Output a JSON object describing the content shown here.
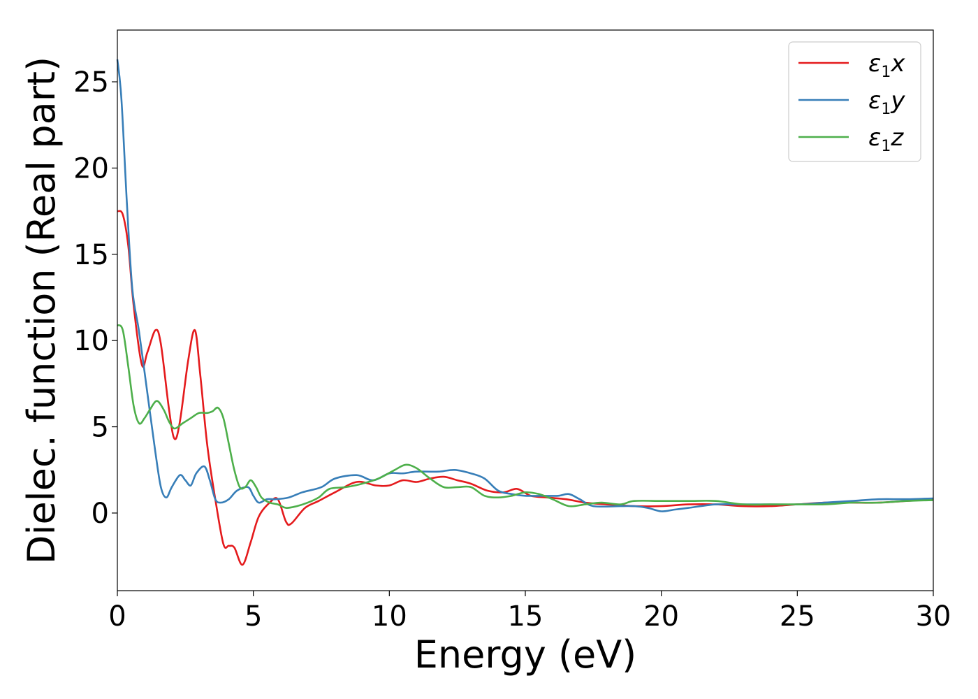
{
  "chart_data": {
    "type": "line",
    "title": "",
    "xlabel": "Energy (eV)",
    "ylabel": "Dielec. function (Real part)",
    "xlim": [
      0,
      30
    ],
    "ylim": [
      -4.5,
      28
    ],
    "xticks": [
      0,
      5,
      10,
      15,
      20,
      25,
      30
    ],
    "yticks": [
      0,
      5,
      10,
      15,
      20,
      25
    ],
    "grid": false,
    "legend_position": "top-right",
    "series": [
      {
        "name": "ε1x",
        "legend_parts": {
          "symbol": "ε",
          "sub": "1",
          "axis": "x"
        },
        "color": "#e41a1c",
        "points": [
          [
            0,
            17.5
          ],
          [
            0.2,
            17.3
          ],
          [
            0.4,
            15.5
          ],
          [
            0.6,
            12.0
          ],
          [
            0.9,
            8.6
          ],
          [
            1.1,
            9.3
          ],
          [
            1.4,
            10.6
          ],
          [
            1.6,
            9.8
          ],
          [
            1.9,
            6.0
          ],
          [
            2.1,
            4.3
          ],
          [
            2.3,
            5.3
          ],
          [
            2.6,
            8.8
          ],
          [
            2.85,
            10.6
          ],
          [
            3.05,
            8.0
          ],
          [
            3.3,
            4.0
          ],
          [
            3.6,
            0.8
          ],
          [
            3.9,
            -1.8
          ],
          [
            4.1,
            -1.9
          ],
          [
            4.3,
            -2.0
          ],
          [
            4.6,
            -3.0
          ],
          [
            4.9,
            -1.7
          ],
          [
            5.2,
            -0.2
          ],
          [
            5.6,
            0.6
          ],
          [
            5.9,
            0.8
          ],
          [
            6.2,
            -0.5
          ],
          [
            6.4,
            -0.6
          ],
          [
            6.9,
            0.3
          ],
          [
            7.4,
            0.7
          ],
          [
            8.0,
            1.2
          ],
          [
            8.8,
            1.8
          ],
          [
            9.5,
            1.6
          ],
          [
            10.0,
            1.6
          ],
          [
            10.5,
            1.9
          ],
          [
            11.0,
            1.8
          ],
          [
            11.5,
            2.0
          ],
          [
            12.0,
            2.1
          ],
          [
            12.5,
            1.9
          ],
          [
            13.0,
            1.7
          ],
          [
            13.6,
            1.3
          ],
          [
            14.2,
            1.2
          ],
          [
            14.7,
            1.4
          ],
          [
            15.2,
            1.0
          ],
          [
            15.8,
            0.9
          ],
          [
            16.5,
            0.8
          ],
          [
            17.2,
            0.6
          ],
          [
            18.0,
            0.5
          ],
          [
            19.0,
            0.4
          ],
          [
            20.0,
            0.4
          ],
          [
            21.0,
            0.5
          ],
          [
            22.0,
            0.5
          ],
          [
            23.0,
            0.4
          ],
          [
            24.0,
            0.4
          ],
          [
            25.0,
            0.5
          ],
          [
            26.0,
            0.6
          ],
          [
            27.0,
            0.6
          ],
          [
            28.0,
            0.6
          ],
          [
            29.0,
            0.7
          ],
          [
            30.0,
            0.8
          ]
        ]
      },
      {
        "name": "ε1y",
        "legend_parts": {
          "symbol": "ε",
          "sub": "1",
          "axis": "y"
        },
        "color": "#377eb8",
        "points": [
          [
            0,
            26.3
          ],
          [
            0.15,
            24.0
          ],
          [
            0.35,
            18.0
          ],
          [
            0.55,
            13.0
          ],
          [
            0.8,
            10.5
          ],
          [
            1.1,
            7.0
          ],
          [
            1.4,
            3.5
          ],
          [
            1.6,
            1.5
          ],
          [
            1.8,
            0.9
          ],
          [
            2.0,
            1.5
          ],
          [
            2.3,
            2.2
          ],
          [
            2.5,
            1.9
          ],
          [
            2.7,
            1.6
          ],
          [
            2.9,
            2.3
          ],
          [
            3.2,
            2.7
          ],
          [
            3.4,
            1.9
          ],
          [
            3.6,
            0.8
          ],
          [
            3.8,
            0.6
          ],
          [
            4.1,
            0.8
          ],
          [
            4.4,
            1.3
          ],
          [
            4.8,
            1.5
          ],
          [
            5.0,
            1.0
          ],
          [
            5.2,
            0.6
          ],
          [
            5.5,
            0.8
          ],
          [
            5.8,
            0.8
          ],
          [
            6.3,
            0.9
          ],
          [
            6.8,
            1.2
          ],
          [
            7.5,
            1.5
          ],
          [
            8.0,
            2.0
          ],
          [
            8.8,
            2.2
          ],
          [
            9.4,
            1.9
          ],
          [
            10.0,
            2.3
          ],
          [
            10.5,
            2.3
          ],
          [
            11.0,
            2.4
          ],
          [
            11.8,
            2.4
          ],
          [
            12.4,
            2.5
          ],
          [
            13.0,
            2.3
          ],
          [
            13.5,
            2.0
          ],
          [
            14.0,
            1.3
          ],
          [
            14.5,
            1.1
          ],
          [
            15.0,
            1.0
          ],
          [
            15.6,
            1.0
          ],
          [
            16.2,
            1.0
          ],
          [
            16.6,
            1.1
          ],
          [
            17.0,
            0.8
          ],
          [
            17.5,
            0.4
          ],
          [
            18.5,
            0.4
          ],
          [
            19.0,
            0.4
          ],
          [
            19.5,
            0.3
          ],
          [
            20.0,
            0.1
          ],
          [
            20.5,
            0.2
          ],
          [
            21.0,
            0.3
          ],
          [
            22.0,
            0.5
          ],
          [
            23.0,
            0.5
          ],
          [
            24.0,
            0.5
          ],
          [
            25.0,
            0.5
          ],
          [
            26.0,
            0.6
          ],
          [
            27.0,
            0.7
          ],
          [
            28.0,
            0.8
          ],
          [
            29.0,
            0.8
          ],
          [
            30.0,
            0.85
          ]
        ]
      },
      {
        "name": "ε1z",
        "legend_parts": {
          "symbol": "ε",
          "sub": "1",
          "axis": "z"
        },
        "color": "#4daf4a",
        "points": [
          [
            0,
            10.9
          ],
          [
            0.2,
            10.6
          ],
          [
            0.4,
            8.5
          ],
          [
            0.6,
            6.2
          ],
          [
            0.8,
            5.2
          ],
          [
            1.0,
            5.5
          ],
          [
            1.2,
            6.0
          ],
          [
            1.45,
            6.5
          ],
          [
            1.7,
            6.0
          ],
          [
            1.9,
            5.3
          ],
          [
            2.1,
            4.9
          ],
          [
            2.4,
            5.2
          ],
          [
            2.7,
            5.5
          ],
          [
            3.0,
            5.8
          ],
          [
            3.3,
            5.8
          ],
          [
            3.5,
            5.9
          ],
          [
            3.7,
            6.1
          ],
          [
            3.9,
            5.5
          ],
          [
            4.1,
            4.0
          ],
          [
            4.3,
            2.5
          ],
          [
            4.5,
            1.5
          ],
          [
            4.7,
            1.5
          ],
          [
            4.9,
            1.9
          ],
          [
            5.1,
            1.5
          ],
          [
            5.3,
            0.9
          ],
          [
            5.6,
            0.6
          ],
          [
            5.9,
            0.5
          ],
          [
            6.2,
            0.3
          ],
          [
            6.6,
            0.4
          ],
          [
            7.0,
            0.6
          ],
          [
            7.4,
            0.9
          ],
          [
            7.8,
            1.4
          ],
          [
            8.4,
            1.5
          ],
          [
            9.0,
            1.7
          ],
          [
            9.6,
            2.0
          ],
          [
            10.2,
            2.5
          ],
          [
            10.6,
            2.8
          ],
          [
            11.0,
            2.6
          ],
          [
            11.5,
            2.0
          ],
          [
            12.0,
            1.5
          ],
          [
            12.5,
            1.5
          ],
          [
            13.0,
            1.5
          ],
          [
            13.5,
            1.0
          ],
          [
            14.0,
            0.9
          ],
          [
            14.5,
            1.0
          ],
          [
            15.0,
            1.2
          ],
          [
            15.5,
            1.1
          ],
          [
            16.0,
            0.8
          ],
          [
            16.6,
            0.4
          ],
          [
            17.2,
            0.5
          ],
          [
            17.8,
            0.6
          ],
          [
            18.5,
            0.5
          ],
          [
            19.0,
            0.7
          ],
          [
            20.0,
            0.7
          ],
          [
            21.0,
            0.7
          ],
          [
            22.0,
            0.7
          ],
          [
            23.0,
            0.5
          ],
          [
            24.0,
            0.5
          ],
          [
            25.0,
            0.5
          ],
          [
            26.0,
            0.5
          ],
          [
            27.0,
            0.6
          ],
          [
            28.0,
            0.6
          ],
          [
            29.0,
            0.7
          ],
          [
            30.0,
            0.75
          ]
        ]
      }
    ]
  }
}
